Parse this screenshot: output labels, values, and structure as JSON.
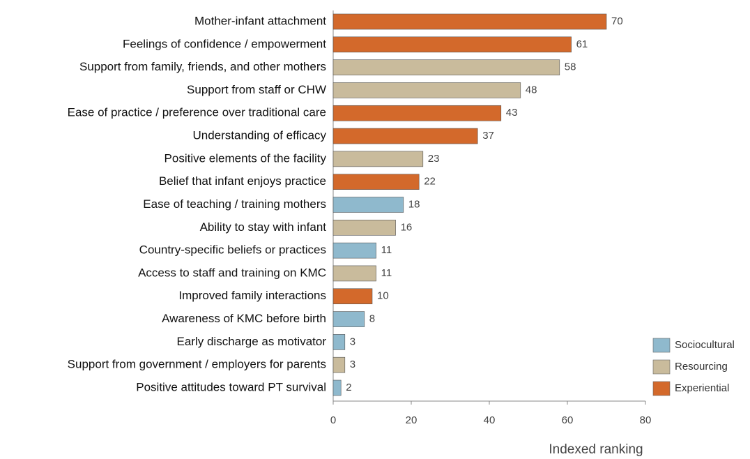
{
  "chart_data": {
    "type": "bar",
    "orientation": "horizontal",
    "xlabel": "Indexed ranking",
    "categories": [
      "Mother-infant attachment",
      "Feelings of confidence / empowerment",
      "Support from family, friends, and other mothers",
      "Support from staff or CHW",
      "Ease of practice / preference over traditional care",
      "Understanding of efficacy",
      "Positive elements of the facility",
      "Belief that infant enjoys practice",
      "Ease of teaching / training mothers",
      "Ability to stay with infant",
      "Country-specific beliefs or practices",
      "Access to staff and training on KMC",
      "Improved  family interactions",
      "Awareness of KMC before birth",
      "Early discharge as motivator",
      "Support from government / employers for parents",
      "Positive attitudes toward PT survival"
    ],
    "series": [
      {
        "name": "Sociocultural",
        "color": "#8fb9cd",
        "values": [
          null,
          null,
          null,
          null,
          null,
          null,
          null,
          null,
          18,
          null,
          11,
          null,
          null,
          8,
          3,
          null,
          2
        ]
      },
      {
        "name": "Resourcing",
        "color": "#c9bb9c",
        "values": [
          null,
          null,
          58,
          48,
          null,
          null,
          23,
          null,
          null,
          16,
          null,
          11,
          null,
          null,
          null,
          3,
          null
        ]
      },
      {
        "name": "Experiential",
        "color": "#d3692b",
        "values": [
          70,
          61,
          null,
          null,
          43,
          37,
          null,
          22,
          null,
          null,
          null,
          null,
          10,
          null,
          null,
          null,
          null
        ]
      }
    ],
    "xlim": [
      0,
      80
    ],
    "xticks": [
      0,
      20,
      40,
      60,
      80
    ],
    "legend": "lower right"
  }
}
